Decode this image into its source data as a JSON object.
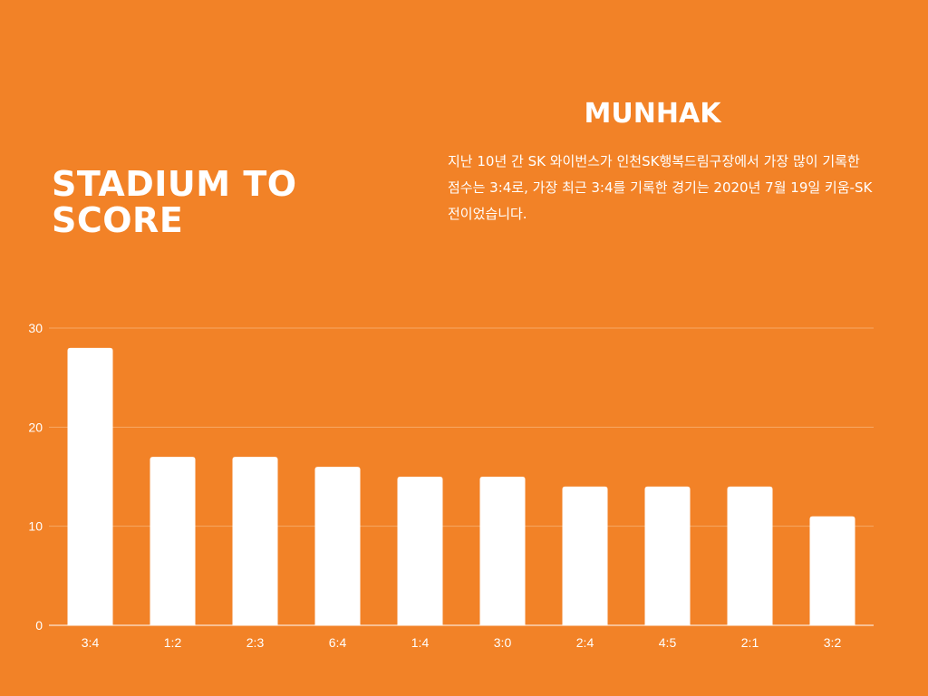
{
  "page": {
    "title": "STADIUM TO SCORE",
    "side_heading": "MUNHAK",
    "description": "지난 10년 간 SK 와이번스가 인천SK행복드림구장에서 가장 많이 기록한 점수는 3:4로, 가장 최근 3:4를 기록한 경기는 2020년 7월 19일 키움-SK전이었습니다."
  },
  "colors": {
    "background": "#f28227",
    "bar": "#ffffff",
    "gridline": "#f7a866",
    "tick_text": "#ffffff"
  },
  "chart_data": {
    "type": "bar",
    "title": "",
    "xlabel": "",
    "ylabel": "",
    "categories": [
      "3:4",
      "1:2",
      "2:3",
      "6:4",
      "1:4",
      "3:0",
      "2:4",
      "4:5",
      "2:1",
      "3:2"
    ],
    "values": [
      28,
      17,
      17,
      16,
      15,
      15,
      14,
      14,
      14,
      11
    ],
    "ylim": [
      0,
      30
    ],
    "yticks": [
      0,
      10,
      20,
      30
    ],
    "grid": true,
    "legend": "none"
  }
}
